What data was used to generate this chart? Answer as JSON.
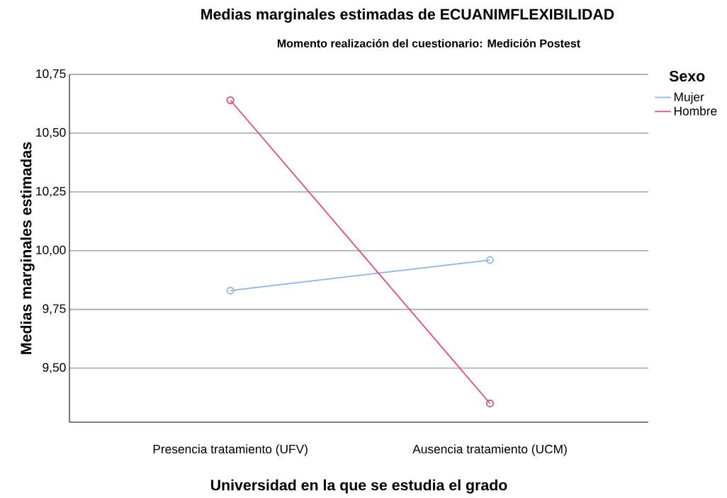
{
  "chart_data": {
    "type": "line",
    "title": "Medias marginales estimadas de ECUANIMFLEXIBILIDAD",
    "subtitle": "Momento realización del cuestionario: Medición Postest",
    "xlabel": "Universidad en la que se estudia el grado",
    "ylabel": "Medias marginales estimadas",
    "legend_title": "Sexo",
    "categories": [
      "Presencia tratamiento (UFV)",
      "Ausencia tratamiento (UCM)"
    ],
    "series": [
      {
        "name": "Mujer",
        "color": "#8cb4ea",
        "values": [
          9.83,
          9.96
        ]
      },
      {
        "name": "Hombre",
        "color": "#e5486e",
        "values": [
          10.64,
          9.35
        ]
      }
    ],
    "ylim": [
      9.27,
      10.75
    ],
    "yticks": [
      {
        "value": 9.5,
        "label": "9,50"
      },
      {
        "value": 9.75,
        "label": "9,75"
      },
      {
        "value": 10.0,
        "label": "10,00"
      },
      {
        "value": 10.25,
        "label": "10,25"
      },
      {
        "value": 10.5,
        "label": "10,50"
      },
      {
        "value": 10.75,
        "label": "10,75"
      }
    ],
    "grid": "y",
    "legend": "top right",
    "marker": "circle",
    "line_style": "solid"
  }
}
